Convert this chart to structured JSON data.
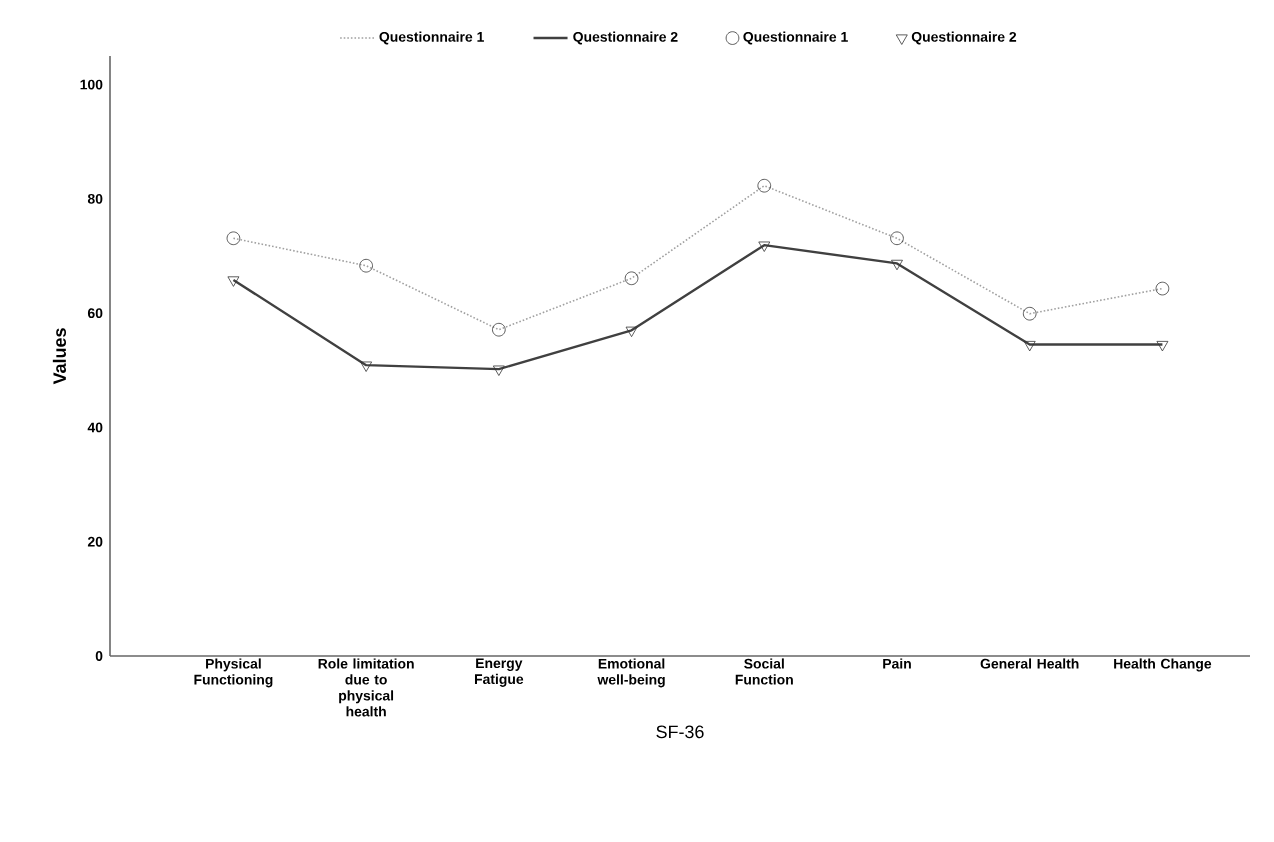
{
  "chart_data": {
    "type": "line",
    "xlabel": "SF-36",
    "ylabel": "Values",
    "categories": [
      "Physical Functioning",
      "Role limitation due to physical health",
      "Energy Fatigue",
      "Emotional well-being",
      "Social Function",
      "Pain",
      "General Health",
      "Health Change"
    ],
    "series": [
      {
        "name": "Questionnaire 1",
        "color": "#a0a0a0",
        "line_style": "dotted",
        "marker": "circle",
        "values": [
          73.1,
          68.3,
          57.1,
          66.1,
          82.3,
          73.1,
          59.9,
          64.3
        ]
      },
      {
        "name": "Questionnaire 2",
        "color": "#404040",
        "line_style": "solid",
        "marker": "triangle",
        "values": [
          65.8,
          50.9,
          50.2,
          57.0,
          71.9,
          68.7,
          54.5,
          54.5
        ]
      }
    ],
    "ylim": [
      0,
      105
    ],
    "yticks": [
      0,
      20,
      40,
      60,
      80,
      100
    ],
    "grid": false,
    "legend": "top"
  }
}
